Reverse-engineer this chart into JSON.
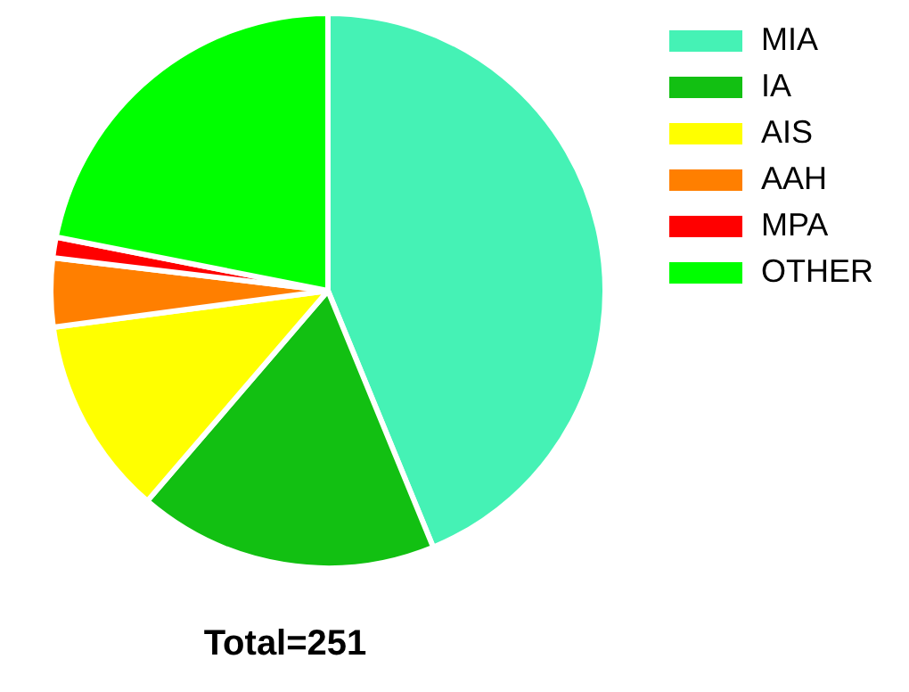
{
  "chart_data": {
    "type": "pie",
    "categories": [
      "MIA",
      "IA",
      "AIS",
      "AAH",
      "MPA",
      "OTHER"
    ],
    "values": [
      43.8,
      17.5,
      11.6,
      4.0,
      1.2,
      21.9
    ],
    "colors": [
      "#45f2b5",
      "#12c012",
      "#ffff00",
      "#ff7f00",
      "#ff0000",
      "#00ff00"
    ],
    "legend": "top right",
    "annotations": [
      "Total=251"
    ]
  }
}
